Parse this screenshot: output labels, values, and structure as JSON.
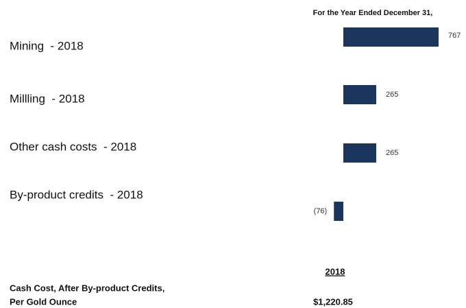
{
  "chart_data": {
    "type": "bar",
    "orientation": "horizontal",
    "header": "For the Year Ended December 31,",
    "categories": [
      "Mining  - 2018",
      "Millling  - 2018",
      "Other cash costs  - 2018",
      "By-product credits  - 2018"
    ],
    "values": [
      767,
      265,
      265,
      -76
    ],
    "value_labels": [
      "767",
      "265",
      "265",
      "(76)"
    ],
    "color": "#1b365d"
  },
  "summary": {
    "year": "2018",
    "label_lines": [
      "Cash Cost, After By-product Credits,",
      "Per Gold Ounce"
    ],
    "value": "$1,220.85"
  }
}
